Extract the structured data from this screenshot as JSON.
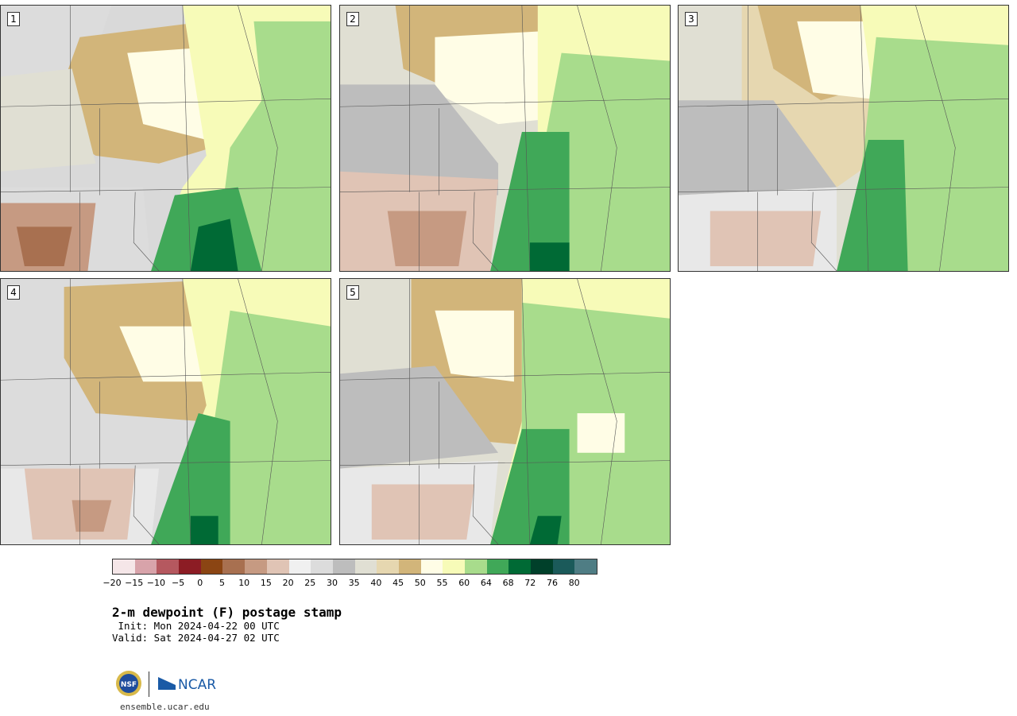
{
  "panels": [
    {
      "label": "1"
    },
    {
      "label": "2"
    },
    {
      "label": "3"
    },
    {
      "label": "4"
    },
    {
      "label": "5"
    }
  ],
  "colorbar": {
    "ticks": [
      "−20",
      "−15",
      "−10",
      "−5",
      "0",
      "5",
      "10",
      "15",
      "20",
      "25",
      "30",
      "35",
      "40",
      "45",
      "50",
      "55",
      "60",
      "64",
      "68",
      "72",
      "76",
      "80"
    ],
    "colors": [
      "#f5e6e8",
      "#d8a3aa",
      "#b5585f",
      "#8c1c24",
      "#8b4513",
      "#a87050",
      "#c69a82",
      "#e0c4b5",
      "#f0f0f0",
      "#dcdcdc",
      "#bdbdbd",
      "#e0dfd3",
      "#e6d7b0",
      "#d2b57a",
      "#fffde6",
      "#f7fbb8",
      "#a8dc8c",
      "#40a858",
      "#006a35",
      "#00402a",
      "#1b5a5a",
      "#4f7d84"
    ]
  },
  "title": "2-m dewpoint (F) postage stamp",
  "init": " Init: Mon 2024-04-22 00 UTC",
  "valid": "Valid: Sat 2024-04-27 02 UTC",
  "logos": {
    "nsf": "NSF",
    "ncar": "NCAR"
  },
  "site": "ensemble.ucar.edu"
}
